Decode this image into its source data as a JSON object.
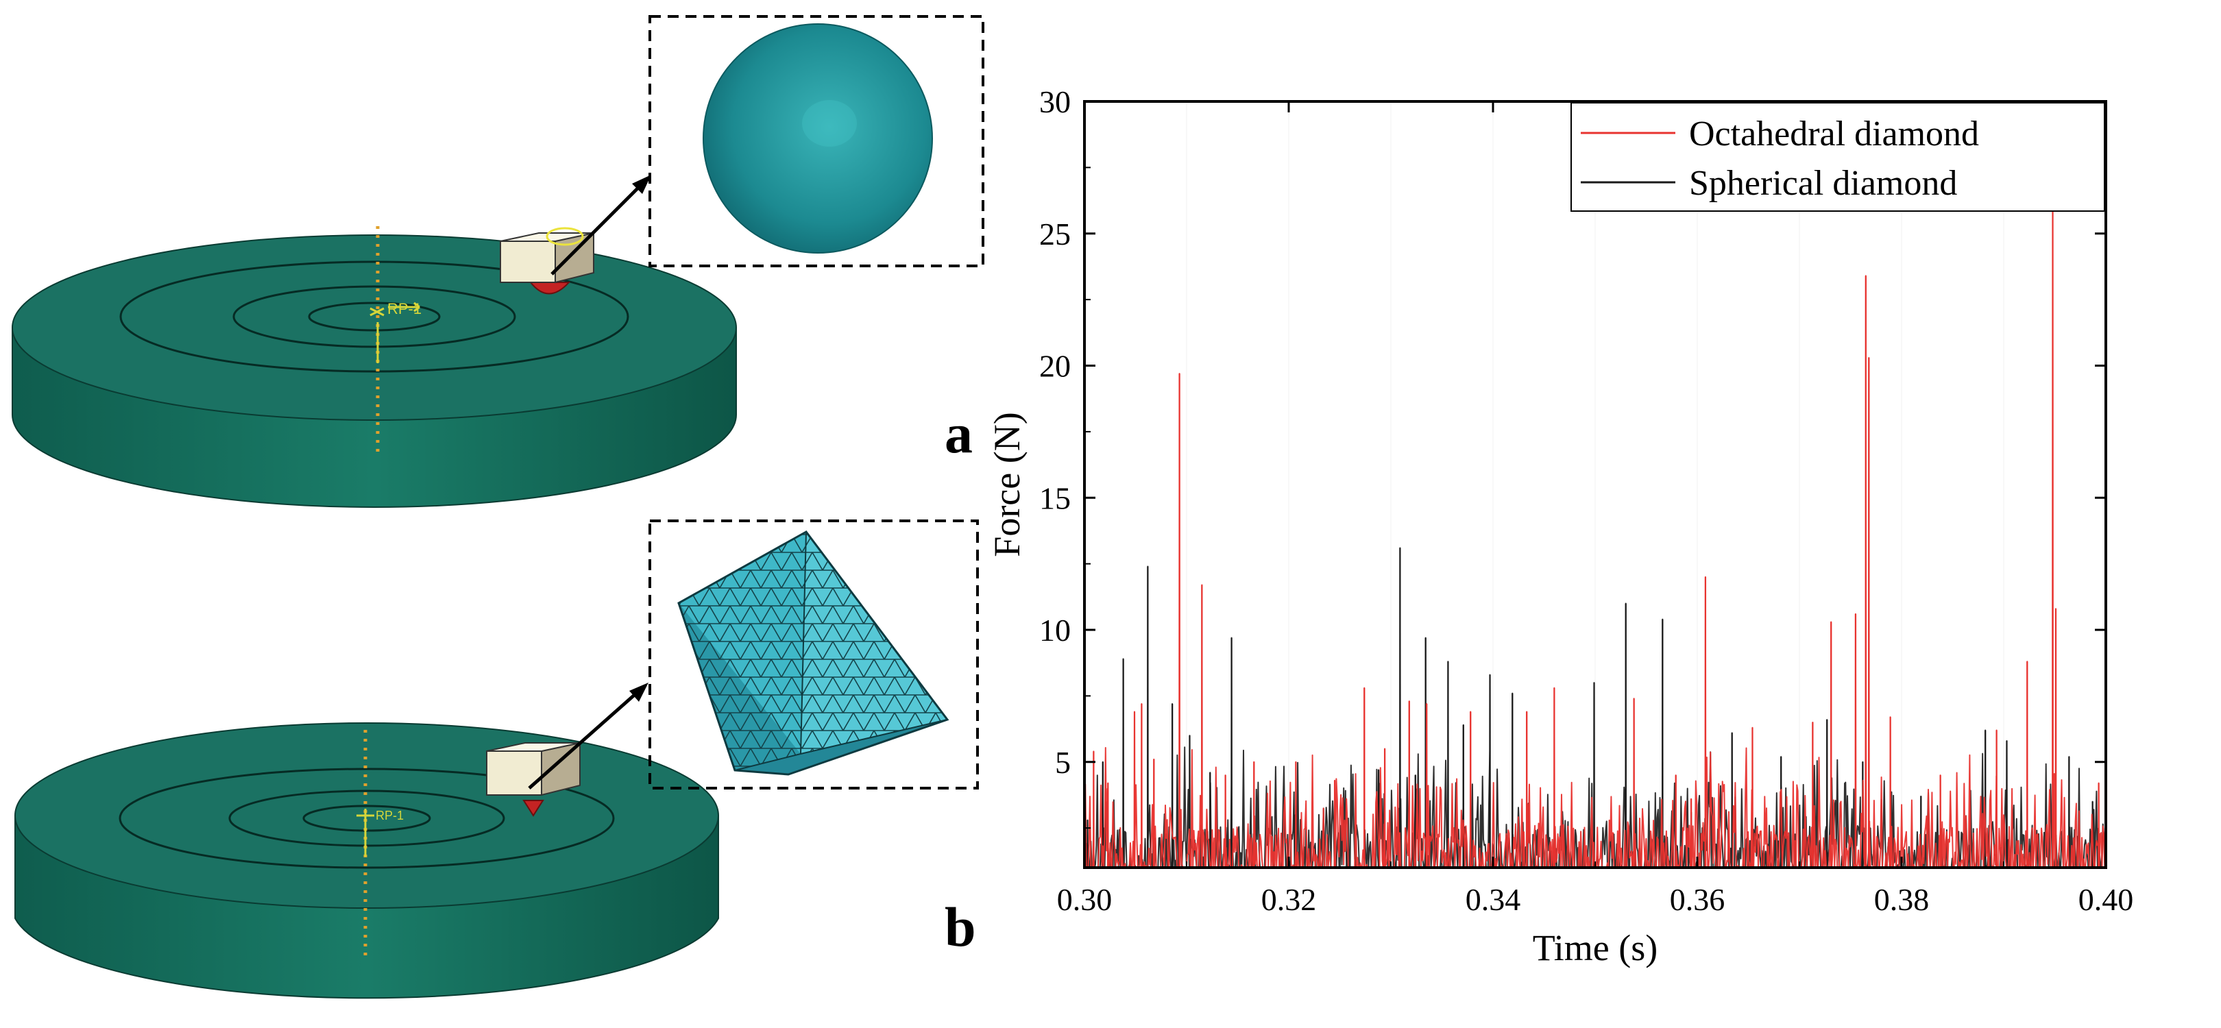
{
  "panels": {
    "a": {
      "label": "a",
      "inset_shape": "spherical-diamond-mesh",
      "node_label": "RP-1"
    },
    "b": {
      "label": "b",
      "inset_shape": "octahedral-diamond-mesh",
      "node_label": "RP-1"
    }
  },
  "colors": {
    "disk_top": "#196e5e",
    "disk_side": "#126150",
    "sphere": "#1f8f95",
    "octahedron": "#3fb8c8",
    "series_octahedral": "#e8332f",
    "series_spherical": "#1a1a1a",
    "ref_line": "#e0a12c"
  },
  "chart_data": {
    "type": "line",
    "title": "",
    "xlabel": "Time (s)",
    "ylabel": "Force (N)",
    "xlim": [
      0.3,
      0.4
    ],
    "ylim": [
      1,
      30
    ],
    "xticks": [
      "0.30",
      "0.32",
      "0.34",
      "0.36",
      "0.38",
      "0.40"
    ],
    "yticks": [
      "5",
      "10",
      "15",
      "20",
      "25",
      "30"
    ],
    "legend_position": "top-right",
    "series": [
      {
        "name": "Octahedral diamond",
        "color": "#e8332f",
        "peaks": [
          [
            0.3009,
            5.4
          ],
          [
            0.3023,
            4.2
          ],
          [
            0.3049,
            6.9
          ],
          [
            0.3056,
            7.2
          ],
          [
            0.3068,
            5.1
          ],
          [
            0.3093,
            19.7
          ],
          [
            0.3115,
            11.7
          ],
          [
            0.3138,
            4.5
          ],
          [
            0.3166,
            5.0
          ],
          [
            0.3207,
            5.0
          ],
          [
            0.3245,
            4.3
          ],
          [
            0.3274,
            7.8
          ],
          [
            0.3294,
            5.5
          ],
          [
            0.3318,
            7.3
          ],
          [
            0.3335,
            7.2
          ],
          [
            0.3378,
            6.9
          ],
          [
            0.3433,
            6.9
          ],
          [
            0.346,
            7.8
          ],
          [
            0.3538,
            7.4
          ],
          [
            0.3579,
            4.5
          ],
          [
            0.3594,
            3.6
          ],
          [
            0.3608,
            12.0
          ],
          [
            0.3654,
            6.3
          ],
          [
            0.3713,
            6.5
          ],
          [
            0.3731,
            10.3
          ],
          [
            0.3755,
            10.6
          ],
          [
            0.3765,
            23.4
          ],
          [
            0.3768,
            20.3
          ],
          [
            0.3789,
            6.7
          ],
          [
            0.3838,
            4.5
          ],
          [
            0.3893,
            6.2
          ],
          [
            0.3923,
            8.8
          ],
          [
            0.3948,
            26.5
          ],
          [
            0.3951,
            10.8
          ],
          [
            0.3993,
            4.2
          ]
        ]
      },
      {
        "name": "Spherical diamond",
        "color": "#1a1a1a",
        "peaks": [
          [
            0.3003,
            2.8
          ],
          [
            0.3018,
            5.0
          ],
          [
            0.3038,
            8.9
          ],
          [
            0.3062,
            12.4
          ],
          [
            0.3086,
            7.2
          ],
          [
            0.3103,
            6.0
          ],
          [
            0.3123,
            4.6
          ],
          [
            0.3144,
            9.7
          ],
          [
            0.3206,
            3.0
          ],
          [
            0.3288,
            4.7
          ],
          [
            0.3309,
            13.1
          ],
          [
            0.3324,
            4.5
          ],
          [
            0.3334,
            9.7
          ],
          [
            0.3356,
            8.8
          ],
          [
            0.3371,
            6.4
          ],
          [
            0.3397,
            8.3
          ],
          [
            0.3419,
            7.6
          ],
          [
            0.3499,
            8.0
          ],
          [
            0.353,
            11.0
          ],
          [
            0.3566,
            10.4
          ],
          [
            0.3594,
            3.1
          ],
          [
            0.3634,
            6.1
          ],
          [
            0.3682,
            5.2
          ],
          [
            0.3727,
            6.6
          ],
          [
            0.3762,
            5.0
          ],
          [
            0.3819,
            3.7
          ],
          [
            0.3882,
            6.2
          ],
          [
            0.3903,
            5.8
          ],
          [
            0.3964,
            5.2
          ],
          [
            0.3987,
            3.5
          ]
        ]
      }
    ]
  }
}
